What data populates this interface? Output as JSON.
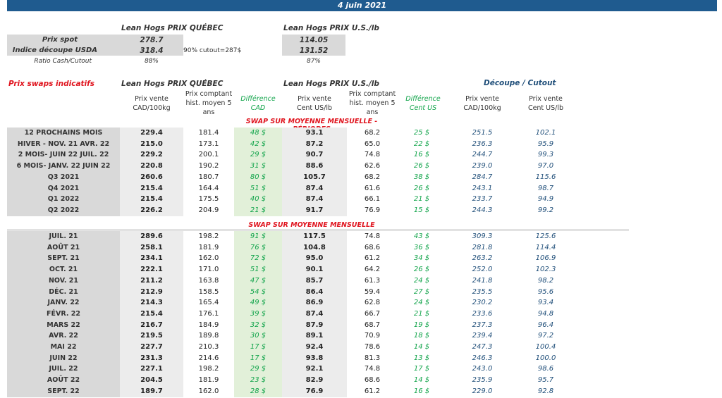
{
  "date": "4 juin 2021",
  "quebec_header": "Lean Hogs PRIX QUÉBEC",
  "us_header": "Lean Hogs PRIX U.S./lb",
  "spot": {
    "prix_spot_label": "Prix spot",
    "indice_label": "Indice découpe USDA",
    "ratio_label": "Ratio Cash/Cutout",
    "qc_spot": "278.7",
    "qc_indice": "318.4",
    "qc_ratio": "88%",
    "cutout_note": "90% cutout=287$",
    "us_spot": "114.05",
    "us_indice": "131.52",
    "us_ratio": "87%"
  },
  "swaps_title": "Prix swaps indicatifs",
  "cutout_title": "Découpe / Cutout",
  "columns": {
    "prix_vente_cad_1": "Prix vente",
    "prix_vente_cad_2": "CAD/100kg",
    "hist_1": "Prix comptant",
    "hist_2": "hist. moyen 5",
    "hist_3": "ans",
    "diff_cad_1": "Différence",
    "diff_cad_2": "CAD",
    "prix_vente_us_1": "Prix vente",
    "prix_vente_us_2": "Cent US/lb",
    "histus_1": "Prix comptant",
    "histus_2": "hist. moyen 5",
    "histus_3": "ans",
    "diff_us_1": "Différence",
    "diff_us_2": "Cent US",
    "cut_cad_1": "Prix vente",
    "cut_cad_2": "CAD/100kg",
    "cut_us_1": "Prix vente",
    "cut_us_2": "Cent US/lb"
  },
  "section_periods": "SWAP SUR MOYENNE MENSUELLE - PÉRIODES",
  "section_monthly": "SWAP SUR MOYENNE MENSUELLE",
  "periods": [
    [
      "12 PROCHAINS MOIS",
      "229.4",
      "181.4",
      "48 $",
      "93.1",
      "68.2",
      "25 $",
      "251.5",
      "102.1"
    ],
    [
      "HIVER - NOV. 21 AVR. 22",
      "215.0",
      "173.1",
      "42 $",
      "87.2",
      "65.0",
      "22 $",
      "236.3",
      "95.9"
    ],
    [
      "2 MOIS- JUIN 22 JUIL. 22",
      "229.2",
      "200.1",
      "29 $",
      "90.7",
      "74.8",
      "16 $",
      "244.7",
      "99.3"
    ],
    [
      "6 MOIS- JANV. 22 JUIN 22",
      "220.8",
      "190.2",
      "31 $",
      "88.6",
      "62.6",
      "26 $",
      "239.0",
      "97.0"
    ],
    [
      "Q3 2021",
      "260.6",
      "180.7",
      "80 $",
      "105.7",
      "68.2",
      "38 $",
      "284.7",
      "115.6"
    ],
    [
      "Q4 2021",
      "215.4",
      "164.4",
      "51 $",
      "87.4",
      "61.6",
      "26 $",
      "243.1",
      "98.7"
    ],
    [
      "Q1 2022",
      "215.4",
      "175.5",
      "40 $",
      "87.4",
      "66.1",
      "21 $",
      "233.7",
      "94.9"
    ],
    [
      "Q2 2022",
      "226.2",
      "204.9",
      "21 $",
      "91.7",
      "76.9",
      "15 $",
      "244.3",
      "99.2"
    ]
  ],
  "months": [
    [
      "JUIL. 21",
      "289.6",
      "198.2",
      "91 $",
      "117.5",
      "74.8",
      "43 $",
      "309.3",
      "125.6"
    ],
    [
      "AOÛT 21",
      "258.1",
      "181.9",
      "76 $",
      "104.8",
      "68.6",
      "36 $",
      "281.8",
      "114.4"
    ],
    [
      "SEPT. 21",
      "234.1",
      "162.0",
      "72 $",
      "95.0",
      "61.2",
      "34 $",
      "263.2",
      "106.9"
    ],
    [
      "OCT. 21",
      "222.1",
      "171.0",
      "51 $",
      "90.1",
      "64.2",
      "26 $",
      "252.0",
      "102.3"
    ],
    [
      "NOV. 21",
      "211.2",
      "163.8",
      "47 $",
      "85.7",
      "61.3",
      "24 $",
      "241.8",
      "98.2"
    ],
    [
      "DÉC. 21",
      "212.9",
      "158.5",
      "54 $",
      "86.4",
      "59.4",
      "27 $",
      "235.5",
      "95.6"
    ],
    [
      "JANV. 22",
      "214.3",
      "165.4",
      "49 $",
      "86.9",
      "62.8",
      "24 $",
      "230.2",
      "93.4"
    ],
    [
      "FÉVR. 22",
      "215.4",
      "176.1",
      "39 $",
      "87.4",
      "66.7",
      "21 $",
      "233.6",
      "94.8"
    ],
    [
      "MARS 22",
      "216.7",
      "184.9",
      "32 $",
      "87.9",
      "68.7",
      "19 $",
      "237.3",
      "96.4"
    ],
    [
      "AVR. 22",
      "219.5",
      "189.8",
      "30 $",
      "89.1",
      "70.9",
      "18 $",
      "239.4",
      "97.2"
    ],
    [
      "MAI 22",
      "227.7",
      "210.3",
      "17 $",
      "92.4",
      "78.6",
      "14 $",
      "247.3",
      "100.4"
    ],
    [
      "JUIN 22",
      "231.3",
      "214.6",
      "17 $",
      "93.8",
      "81.3",
      "13 $",
      "246.3",
      "100.0"
    ],
    [
      "JUIL. 22",
      "227.1",
      "198.2",
      "29 $",
      "92.1",
      "74.8",
      "17 $",
      "243.0",
      "98.6"
    ],
    [
      "AOÛT 22",
      "204.5",
      "181.9",
      "23 $",
      "82.9",
      "68.6",
      "14 $",
      "235.9",
      "95.7"
    ],
    [
      "SEPT. 22",
      "189.7",
      "162.0",
      "28 $",
      "76.9",
      "61.2",
      "16 $",
      "229.0",
      "92.8"
    ]
  ]
}
